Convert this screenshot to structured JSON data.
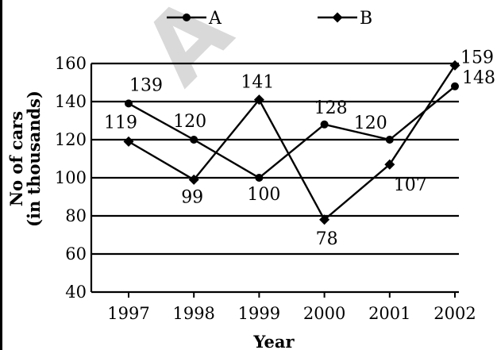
{
  "chart_data": {
    "type": "line",
    "watermark": "A",
    "categories": [
      "1997",
      "1998",
      "1999",
      "2000",
      "2001",
      "2002"
    ],
    "series": [
      {
        "name": "A",
        "marker": "circle",
        "values": [
          139,
          120,
          100,
          128,
          120,
          148
        ],
        "labels": [
          "139",
          "120",
          "100",
          "128",
          "120",
          "148"
        ]
      },
      {
        "name": "B",
        "marker": "diamond",
        "values": [
          119,
          99,
          141,
          78,
          107,
          159
        ],
        "labels": [
          "119",
          "99",
          "141",
          "78",
          "107",
          "159"
        ]
      }
    ],
    "xlabel": "Year",
    "ylabel_line1": "No of cars",
    "ylabel_line2": "(in thousands)",
    "ylim": [
      40,
      160
    ],
    "yticks": [
      40,
      60,
      80,
      100,
      120,
      140,
      160
    ],
    "grid": true,
    "legend_position": "top",
    "line_color": "#000000"
  }
}
